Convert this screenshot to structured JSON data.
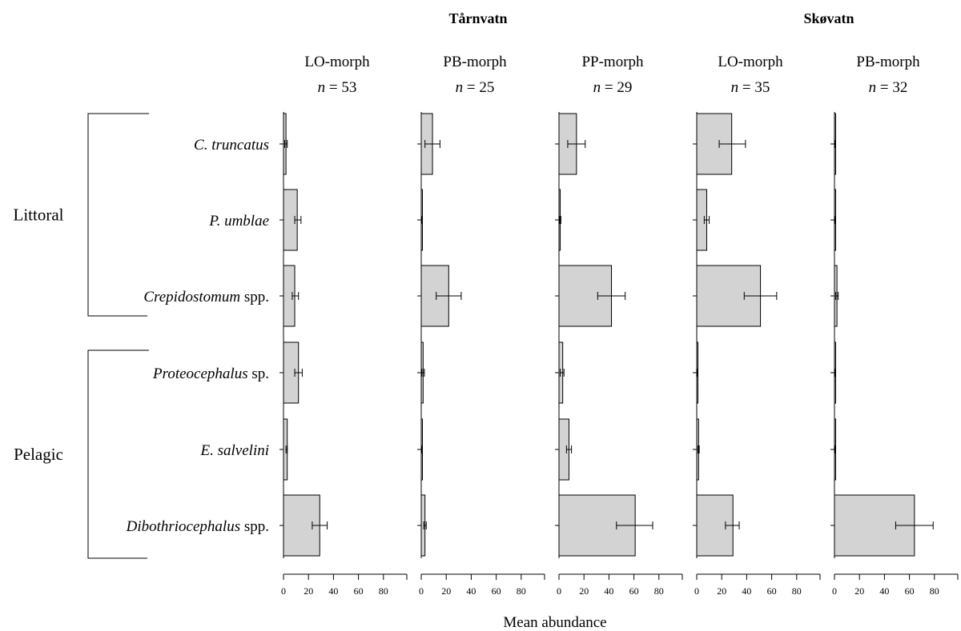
{
  "chart_data": {
    "type": "bar",
    "orientation": "horizontal",
    "xlabel": "Mean abundance",
    "xlim": [
      0,
      100
    ],
    "xticks": [
      0,
      20,
      40,
      60,
      80
    ],
    "lakes": [
      {
        "name": "Tårnvatn",
        "panels": [
          0,
          1,
          2
        ]
      },
      {
        "name": "Skøvatn",
        "panels": [
          3,
          4
        ]
      }
    ],
    "habitat_groups": [
      {
        "name": "Littoral",
        "categories": [
          0,
          1,
          2
        ]
      },
      {
        "name": "Pelagic",
        "categories": [
          3,
          4,
          5
        ]
      }
    ],
    "categories": [
      {
        "italic": "C. truncatus",
        "suffix": ""
      },
      {
        "italic": "P. umblae",
        "suffix": ""
      },
      {
        "italic": "Crepidostomum",
        "suffix": " spp."
      },
      {
        "italic": "Proteocephalus",
        "suffix": " sp."
      },
      {
        "italic": "E. salvelini",
        "suffix": ""
      },
      {
        "italic": "Dibothriocephalus",
        "suffix": " spp."
      }
    ],
    "panels": [
      {
        "lake": "Tårnvatn",
        "morph": "LO-morph",
        "n_label": "n",
        "n_value": " = 53",
        "values": [
          2,
          11,
          9,
          12,
          3,
          29
        ],
        "errors": [
          [
            1,
            3
          ],
          [
            9,
            14
          ],
          [
            7,
            12
          ],
          [
            9,
            15
          ],
          [
            2,
            3
          ],
          [
            23,
            35
          ]
        ]
      },
      {
        "lake": "Tårnvatn",
        "morph": "PB-morph",
        "n_label": "n",
        "n_value": " = 25",
        "values": [
          9,
          0.5,
          22,
          1.5,
          0.3,
          3
        ],
        "errors": [
          [
            3,
            15
          ],
          [
            0.3,
            0.8
          ],
          [
            12,
            32
          ],
          [
            0.5,
            2.5
          ],
          [
            0.1,
            0.5
          ],
          [
            2,
            4
          ]
        ]
      },
      {
        "lake": "Tårnvatn",
        "morph": "PP-morph",
        "n_label": "n",
        "n_value": " = 29",
        "values": [
          14,
          1,
          42,
          3,
          8,
          61
        ],
        "errors": [
          [
            7,
            21
          ],
          [
            0.5,
            1.5
          ],
          [
            31,
            53
          ],
          [
            1,
            4
          ],
          [
            6,
            10
          ],
          [
            46,
            75
          ]
        ]
      },
      {
        "lake": "Skøvatn",
        "morph": "LO-morph",
        "n_label": "n",
        "n_value": " = 35",
        "values": [
          28,
          8,
          51,
          0.5,
          1.5,
          29
        ],
        "errors": [
          [
            18,
            39
          ],
          [
            6,
            10
          ],
          [
            38,
            64
          ],
          [
            0.3,
            0.8
          ],
          [
            1,
            2
          ],
          [
            23,
            34
          ]
        ]
      },
      {
        "lake": "Skøvatn",
        "morph": "PB-morph",
        "n_label": "n",
        "n_value": " = 32",
        "values": [
          0.5,
          0.3,
          2,
          0.5,
          0.5,
          64
        ],
        "errors": [
          [
            0.3,
            0.8
          ],
          [
            0.1,
            0.5
          ],
          [
            1,
            3
          ],
          [
            0.3,
            0.8
          ],
          [
            0.3,
            0.8
          ],
          [
            49,
            79
          ]
        ]
      }
    ]
  }
}
